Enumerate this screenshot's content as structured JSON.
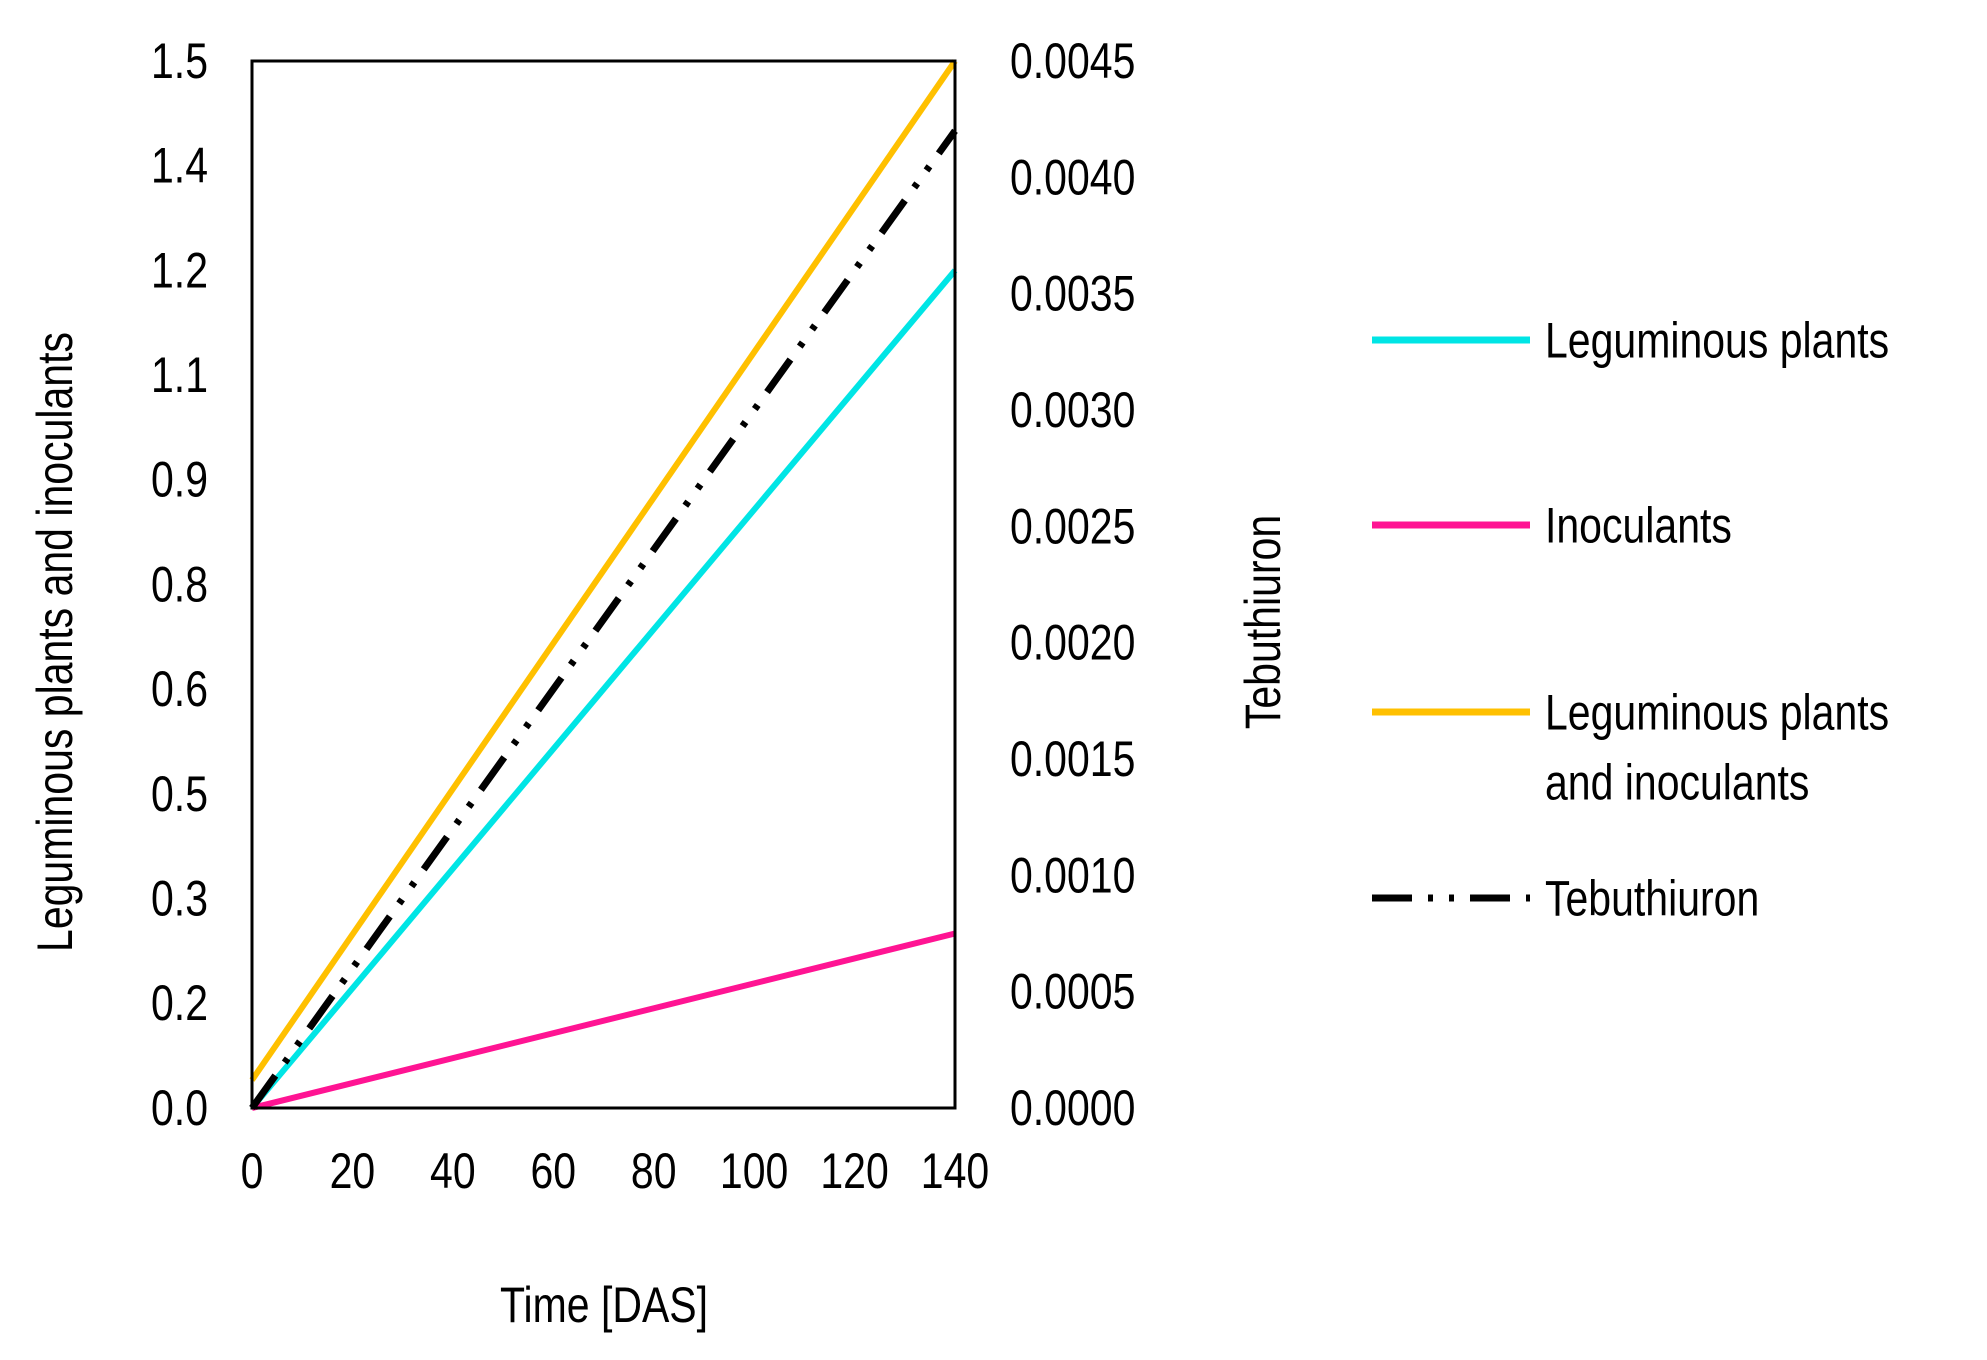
{
  "chart_data": {
    "type": "line",
    "xlabel": "Time [DAS]",
    "ylabel": "Leguminous plants and inoculants",
    "y2label": "Tebuthiuron",
    "x_ticks": [
      "0",
      "20",
      "40",
      "60",
      "80",
      "100",
      "120",
      "140"
    ],
    "y_ticks": [
      "0.0",
      "0.2",
      "0.3",
      "0.5",
      "0.6",
      "0.8",
      "0.9",
      "1.1",
      "1.2",
      "1.4",
      "1.5"
    ],
    "y2_ticks": [
      "0.0000",
      "0.0005",
      "0.0010",
      "0.0015",
      "0.0020",
      "0.0025",
      "0.0030",
      "0.0035",
      "0.0040",
      "0.0045"
    ],
    "xlim": [
      0,
      140
    ],
    "ylim": [
      0,
      1.5
    ],
    "y2lim": [
      0,
      0.0045
    ],
    "grid": false,
    "legend_position": "right",
    "series": [
      {
        "name": "Leguminous plants",
        "axis": "left",
        "color": "#00E5E5",
        "dash": "solid",
        "x": [
          0,
          140
        ],
        "y": [
          0.0,
          1.2
        ]
      },
      {
        "name": "Inoculants",
        "axis": "left",
        "color": "#FF1493",
        "dash": "solid",
        "x": [
          0,
          140
        ],
        "y": [
          0.0,
          0.25
        ]
      },
      {
        "name": "Leguminous plants\nand inoculants",
        "axis": "left",
        "color": "#FFC000",
        "dash": "solid",
        "x": [
          0,
          140
        ],
        "y": [
          0.04,
          1.5
        ]
      },
      {
        "name": "Tebuthiuron",
        "axis": "right",
        "color": "#000000",
        "dash": "dash-dot-dot",
        "x": [
          0,
          140
        ],
        "y": [
          0.0,
          0.0042
        ]
      }
    ]
  }
}
